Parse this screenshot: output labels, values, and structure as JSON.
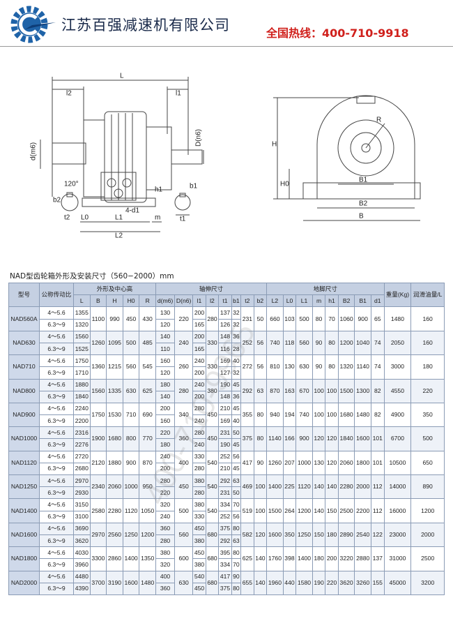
{
  "header": {
    "company": "江苏百强减速机有限公司",
    "hotline": "全国热线：400-710-9918"
  },
  "drawing": {
    "labels": [
      "L",
      "l2",
      "l1",
      "d(m6)",
      "D(n6)",
      "120°",
      "b2",
      "t2",
      "L0",
      "L1",
      "L2",
      "4-d1",
      "m",
      "h1",
      "b1",
      "t1",
      "H",
      "H0",
      "R",
      "B1",
      "B2",
      "B"
    ]
  },
  "watermark": "400-710-9965",
  "table": {
    "caption": "NAD型齿轮箱外形及安装尺寸（560−2000）mm",
    "headers": {
      "model": "型号",
      "ratio": "公称传动比",
      "groups": [
        "外形及中心高",
        "轴伸尺寸",
        "地脚尺寸"
      ],
      "sub": [
        "L",
        "B",
        "H",
        "H0",
        "R",
        "d(m6)",
        "D(n6)",
        "l1",
        "l2",
        "t1",
        "b1",
        "t2",
        "b2",
        "L2",
        "L0",
        "L1",
        "m",
        "h1",
        "B2",
        "B1",
        "d1"
      ],
      "weight": "重量(Kg)",
      "oil": "润滑油量/L"
    },
    "rows": [
      {
        "model": "NAD560A",
        "ratios": [
          "4～5.6",
          "6.3～9"
        ],
        "values": [
          [
            1355,
            1320
          ],
          1100,
          990,
          450,
          430,
          [
            130,
            120
          ],
          220,
          [
            200,
            165
          ],
          280,
          [
            137,
            126
          ],
          [
            32,
            32
          ],
          231,
          50,
          660,
          103,
          500,
          80,
          70,
          1060,
          900,
          65,
          1480,
          160
        ]
      },
      {
        "model": "NAD630",
        "ratios": [
          "4～5.6",
          "6.3～9"
        ],
        "values": [
          [
            1560,
            1525
          ],
          1260,
          1095,
          500,
          485,
          [
            140,
            110
          ],
          240,
          [
            200,
            165
          ],
          330,
          [
            148,
            116
          ],
          [
            36,
            28
          ],
          252,
          56,
          740,
          118,
          560,
          90,
          80,
          1200,
          1040,
          74,
          2050,
          160
        ]
      },
      {
        "model": "NAD710",
        "ratios": [
          "4～5.6",
          "6.3～9"
        ],
        "values": [
          [
            1750,
            1710
          ],
          1360,
          1215,
          560,
          545,
          [
            160,
            120
          ],
          260,
          [
            240,
            200
          ],
          330,
          [
            169,
            127
          ],
          [
            40,
            32
          ],
          272,
          56,
          810,
          130,
          630,
          90,
          80,
          1320,
          1140,
          74,
          3000,
          180
        ]
      },
      {
        "model": "NAD800",
        "ratios": [
          "4～5.6",
          "6.3～9"
        ],
        "values": [
          [
            1880,
            1840
          ],
          1560,
          1335,
          630,
          625,
          [
            180,
            140
          ],
          280,
          [
            240,
            200
          ],
          380,
          [
            190,
            148
          ],
          [
            45,
            36
          ],
          292,
          63,
          870,
          163,
          670,
          100,
          100,
          1500,
          1300,
          82,
          4550,
          220
        ]
      },
      {
        "model": "NAD900",
        "ratios": [
          "4～5.6",
          "6.3～9"
        ],
        "values": [
          [
            2240,
            2200
          ],
          1750,
          1530,
          710,
          690,
          [
            200,
            160
          ],
          340,
          [
            280,
            240
          ],
          450,
          [
            210,
            169
          ],
          [
            45,
            40
          ],
          355,
          80,
          940,
          194,
          740,
          100,
          100,
          1680,
          1480,
          82,
          4900,
          350
        ]
      },
      {
        "model": "NAD1000",
        "ratios": [
          "4～5.6",
          "6.3～9"
        ],
        "values": [
          [
            2316,
            2276
          ],
          1900,
          1680,
          800,
          770,
          [
            220,
            180
          ],
          360,
          [
            280,
            240
          ],
          450,
          [
            231,
            190
          ],
          [
            50,
            45
          ],
          375,
          80,
          1140,
          166,
          900,
          120,
          120,
          1840,
          1600,
          101,
          6700,
          500
        ]
      },
      {
        "model": "NAD1120",
        "ratios": [
          "4～5.6",
          "6.3～9"
        ],
        "values": [
          [
            2720,
            2680
          ],
          2120,
          1880,
          900,
          870,
          [
            240,
            200
          ],
          400,
          [
            330,
            280
          ],
          540,
          [
            252,
            210
          ],
          [
            56,
            45
          ],
          417,
          90,
          1260,
          207,
          1000,
          130,
          120,
          2060,
          1800,
          101,
          10500,
          650
        ]
      },
      {
        "model": "NAD1250",
        "ratios": [
          "4～5.6",
          "6.3～9"
        ],
        "values": [
          [
            2970,
            2930
          ],
          2340,
          2060,
          1000,
          950,
          [
            280,
            220
          ],
          450,
          [
            380,
            280
          ],
          540,
          [
            292,
            231
          ],
          [
            63,
            50
          ],
          469,
          100,
          1400,
          225,
          1120,
          140,
          140,
          2280,
          2000,
          112,
          14000,
          890
        ]
      },
      {
        "model": "NAD1400",
        "ratios": [
          "4～5.6",
          "6.3～9"
        ],
        "values": [
          [
            3150,
            3100
          ],
          2580,
          2280,
          1120,
          1050,
          [
            320,
            240
          ],
          500,
          [
            380,
            330
          ],
          540,
          [
            334,
            252
          ],
          [
            70,
            56
          ],
          519,
          100,
          1500,
          264,
          1200,
          140,
          150,
          2500,
          2200,
          112,
          16000,
          1200
        ]
      },
      {
        "model": "NAD1600",
        "ratios": [
          "4～5.6",
          "6.3～9"
        ],
        "values": [
          [
            3690,
            3620
          ],
          2970,
          2560,
          1250,
          1200,
          [
            360,
            280
          ],
          560,
          [
            450,
            380
          ],
          680,
          [
            375,
            292
          ],
          [
            80,
            63
          ],
          582,
          120,
          1600,
          350,
          1250,
          150,
          180,
          2890,
          2540,
          122,
          23000,
          2000
        ]
      },
      {
        "model": "NAD1800",
        "ratios": [
          "4～5.6",
          "6.3～9"
        ],
        "values": [
          [
            4030,
            3960
          ],
          3300,
          2860,
          1400,
          1350,
          [
            380,
            320
          ],
          600,
          [
            450,
            380
          ],
          680,
          [
            395,
            334
          ],
          [
            80,
            70
          ],
          625,
          140,
          1760,
          398,
          1400,
          180,
          200,
          3220,
          2880,
          137,
          31000,
          2500
        ]
      },
      {
        "model": "NAD2000",
        "ratios": [
          "4～5.6",
          "6.3～9"
        ],
        "values": [
          [
            4480,
            4390
          ],
          3700,
          3190,
          1600,
          1480,
          [
            400,
            360
          ],
          630,
          [
            540,
            450
          ],
          680,
          [
            417,
            375
          ],
          [
            90,
            80
          ],
          655,
          140,
          1960,
          440,
          1580,
          190,
          220,
          3620,
          3260,
          155,
          45000,
          3200
        ]
      }
    ]
  }
}
